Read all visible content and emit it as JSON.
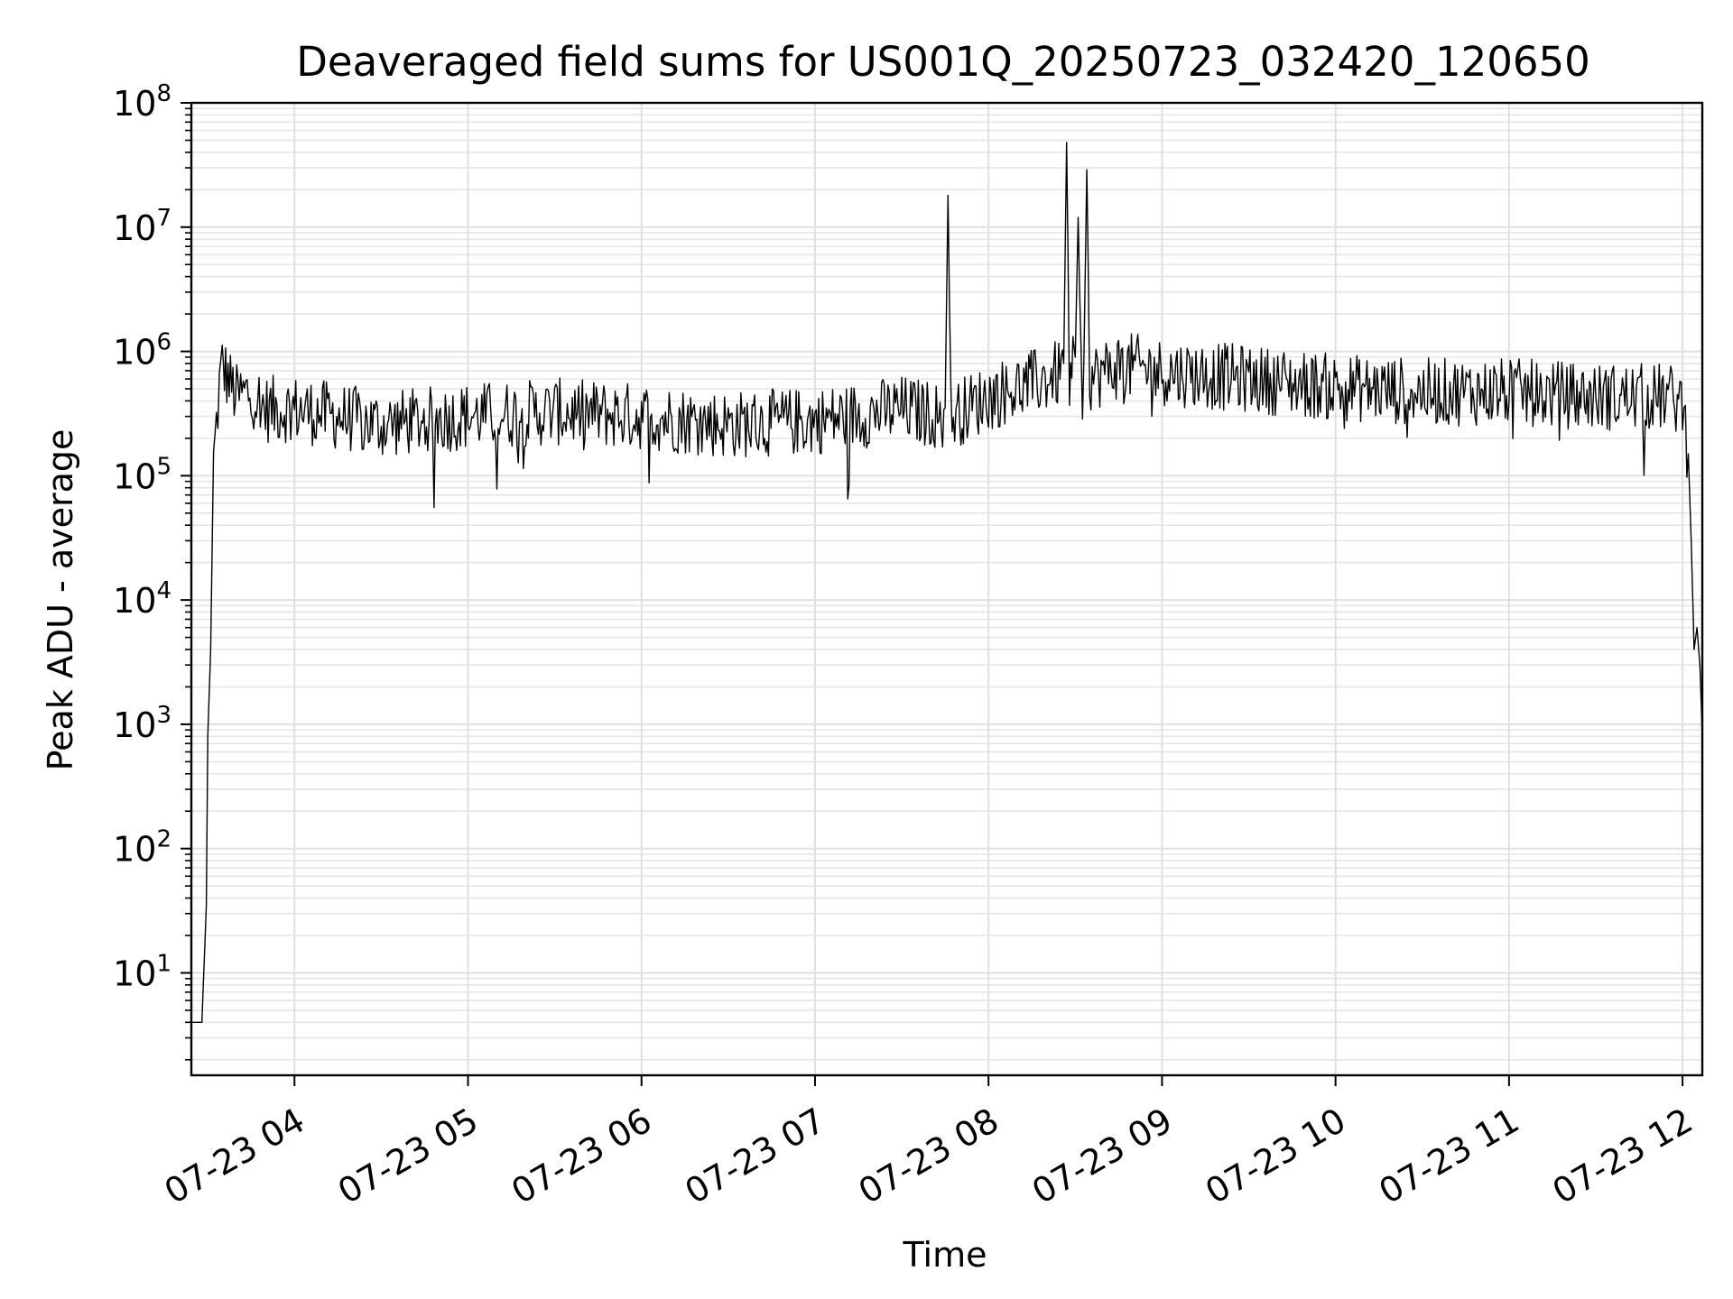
{
  "chart_data": {
    "type": "line",
    "title": "Deaveraged field sums for US001Q_20250723_032420_120650",
    "xlabel": "Time",
    "ylabel": "Peak ADU - average",
    "yscale": "log",
    "ylim": [
      1.5,
      100000000
    ],
    "xlim": [
      "2025-07-23 03:24:20",
      "2025-07-23 12:06:50"
    ],
    "grid": true,
    "line_color": "#000000",
    "x_ticks": [
      {
        "value": "2025-07-23 04:00",
        "label": "07-23 04"
      },
      {
        "value": "2025-07-23 05:00",
        "label": "07-23 05"
      },
      {
        "value": "2025-07-23 06:00",
        "label": "07-23 06"
      },
      {
        "value": "2025-07-23 07:00",
        "label": "07-23 07"
      },
      {
        "value": "2025-07-23 08:00",
        "label": "07-23 08"
      },
      {
        "value": "2025-07-23 09:00",
        "label": "07-23 09"
      },
      {
        "value": "2025-07-23 10:00",
        "label": "07-23 10"
      },
      {
        "value": "2025-07-23 11:00",
        "label": "07-23 11"
      },
      {
        "value": "2025-07-23 12:00",
        "label": "07-23 12"
      }
    ],
    "y_ticks": [
      {
        "value": 10,
        "base": "10",
        "exp": "1"
      },
      {
        "value": 100,
        "base": "10",
        "exp": "2"
      },
      {
        "value": 1000,
        "base": "10",
        "exp": "3"
      },
      {
        "value": 10000,
        "base": "10",
        "exp": "4"
      },
      {
        "value": 100000,
        "base": "10",
        "exp": "5"
      },
      {
        "value": 1000000,
        "base": "10",
        "exp": "6"
      },
      {
        "value": 10000000,
        "base": "10",
        "exp": "7"
      },
      {
        "value": 100000000,
        "base": "10",
        "exp": "8"
      }
    ],
    "series": [
      {
        "x": [
          "2025-07-23 03:24:20",
          "2025-07-23 03:28:00",
          "2025-07-23 03:29:30",
          "2025-07-23 03:30:00",
          "2025-07-23 03:31:00",
          "2025-07-23 03:32:00",
          "2025-07-23 03:33:00",
          "2025-07-23 03:34:00",
          "2025-07-23 03:35:00",
          "2025-07-23 03:37:00",
          "2025-07-23 03:40:00",
          "2025-07-23 03:45:00",
          "2025-07-23 03:50:00",
          "2025-07-23 04:00:00",
          "2025-07-23 04:15:00",
          "2025-07-23 04:30:00",
          "2025-07-23 05:00:00",
          "2025-07-23 05:30:00",
          "2025-07-23 06:00:00",
          "2025-07-23 06:30:00",
          "2025-07-23 07:00:00",
          "2025-07-23 07:30:00",
          "2025-07-23 07:45:00",
          "2025-07-23 07:46:00",
          "2025-07-23 07:47:00",
          "2025-07-23 08:00:00",
          "2025-07-23 08:20:00",
          "2025-07-23 08:26:00",
          "2025-07-23 08:27:00",
          "2025-07-23 08:28:00",
          "2025-07-23 08:30:00",
          "2025-07-23 08:31:00",
          "2025-07-23 08:32:00",
          "2025-07-23 08:33:00",
          "2025-07-23 08:34:00",
          "2025-07-23 08:35:00",
          "2025-07-23 08:45:00",
          "2025-07-23 09:00:00",
          "2025-07-23 09:30:00",
          "2025-07-23 10:00:00",
          "2025-07-23 10:30:00",
          "2025-07-23 11:00:00",
          "2025-07-23 11:30:00",
          "2025-07-23 11:55:00",
          "2025-07-23 12:00:00",
          "2025-07-23 12:01:00",
          "2025-07-23 12:02:00",
          "2025-07-23 12:03:00",
          "2025-07-23 12:04:00",
          "2025-07-23 12:05:00",
          "2025-07-23 12:06:00",
          "2025-07-23 12:06:50"
        ],
        "values": [
          4,
          4,
          35,
          800,
          4000,
          150000,
          300000,
          600000,
          900000,
          700000,
          500000,
          550000,
          400000,
          400000,
          350000,
          300000,
          350000,
          380000,
          350000,
          300000,
          320000,
          400000,
          350000,
          18000000,
          350000,
          500000,
          700000,
          800000,
          48000000,
          700000,
          900000,
          12000000,
          800000,
          900000,
          29000000,
          700000,
          900000,
          800000,
          700000,
          600000,
          550000,
          550000,
          500000,
          500000,
          450000,
          300000,
          150000,
          30000,
          4000,
          6000,
          3000,
          800
        ]
      }
    ]
  }
}
